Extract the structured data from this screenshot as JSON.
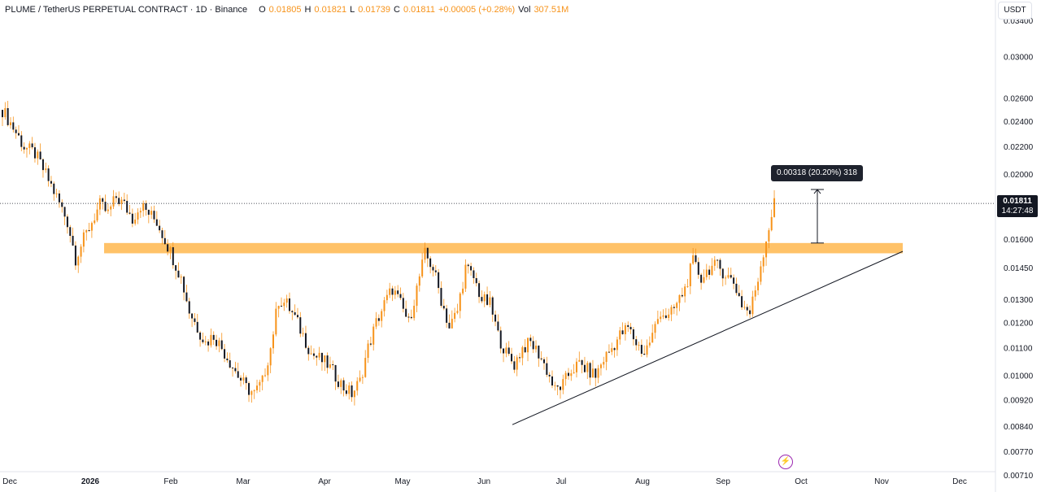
{
  "header": {
    "symbol": "PLUME / TetherUS PERPETUAL CONTRACT · 1D · Binance",
    "open_label": "O",
    "open": "0.01805",
    "high_label": "H",
    "high": "0.01821",
    "low_label": "L",
    "low": "0.01739",
    "close_label": "C",
    "close": "0.01811",
    "change": "+0.00005 (+0.28%)",
    "vol_label": "Vol",
    "vol": "307.51M"
  },
  "price_axis": {
    "unit": "USDT",
    "last_price": "0.01811",
    "countdown": "14:27:48"
  },
  "measure": {
    "label": "0.00318 (20.20%) 318"
  },
  "icons": {
    "lightning": "lightning-icon"
  },
  "colors": {
    "candle": "#f7931a",
    "zone": "#ffb74d",
    "line": "#131722"
  },
  "chart_data": {
    "type": "candlestick",
    "y_scale": "log",
    "ylim": [
      0.0067,
      0.0365
    ],
    "y_ticks": [
      "0.03400",
      "0.03000",
      "0.02600",
      "0.02400",
      "0.02200",
      "0.02000",
      "0.01600",
      "0.01450",
      "0.01300",
      "0.01200",
      "0.01100",
      "0.01000",
      "0.00920",
      "0.00840",
      "0.00770",
      "0.00710"
    ],
    "x_ticks": [
      "Dec",
      "2026",
      "Feb",
      "Mar",
      "Apr",
      "May",
      "Jun",
      "Jul",
      "Aug",
      "Sep",
      "Oct",
      "Nov",
      "Dec"
    ],
    "close_path": [
      [
        0,
        0.025
      ],
      [
        4,
        0.0235
      ],
      [
        8,
        0.022
      ],
      [
        12,
        0.0215
      ],
      [
        16,
        0.02
      ],
      [
        20,
        0.0185
      ],
      [
        24,
        0.017
      ],
      [
        27,
        0.015
      ],
      [
        30,
        0.016
      ],
      [
        33,
        0.017
      ],
      [
        36,
        0.018
      ],
      [
        39,
        0.0175
      ],
      [
        42,
        0.0185
      ],
      [
        45,
        0.018
      ],
      [
        48,
        0.0172
      ],
      [
        51,
        0.018
      ],
      [
        54,
        0.0175
      ],
      [
        57,
        0.017
      ],
      [
        60,
        0.016
      ],
      [
        63,
        0.015
      ],
      [
        66,
        0.014
      ],
      [
        69,
        0.0125
      ],
      [
        72,
        0.0118
      ],
      [
        75,
        0.0112
      ],
      [
        78,
        0.0115
      ],
      [
        81,
        0.011
      ],
      [
        84,
        0.0105
      ],
      [
        87,
        0.01
      ],
      [
        90,
        0.0096
      ],
      [
        93,
        0.0094
      ],
      [
        96,
        0.0098
      ],
      [
        99,
        0.011
      ],
      [
        102,
        0.013
      ],
      [
        105,
        0.0128
      ],
      [
        108,
        0.0122
      ],
      [
        111,
        0.0115
      ],
      [
        114,
        0.0108
      ],
      [
        117,
        0.0106
      ],
      [
        120,
        0.0104
      ],
      [
        123,
        0.01
      ],
      [
        126,
        0.0096
      ],
      [
        129,
        0.0094
      ],
      [
        132,
        0.0098
      ],
      [
        135,
        0.011
      ],
      [
        138,
        0.012
      ],
      [
        141,
        0.0128
      ],
      [
        144,
        0.0135
      ],
      [
        147,
        0.0128
      ],
      [
        150,
        0.012
      ],
      [
        153,
        0.0135
      ],
      [
        156,
        0.0152
      ],
      [
        159,
        0.0145
      ],
      [
        162,
        0.013
      ],
      [
        165,
        0.0118
      ],
      [
        168,
        0.0125
      ],
      [
        171,
        0.0145
      ],
      [
        174,
        0.014
      ],
      [
        177,
        0.013
      ],
      [
        180,
        0.0128
      ],
      [
        183,
        0.0115
      ],
      [
        186,
        0.0108
      ],
      [
        189,
        0.0104
      ],
      [
        192,
        0.011
      ],
      [
        195,
        0.0112
      ],
      [
        198,
        0.0108
      ],
      [
        201,
        0.0102
      ],
      [
        204,
        0.0095
      ],
      [
        207,
        0.0097
      ],
      [
        210,
        0.0102
      ],
      [
        213,
        0.0104
      ],
      [
        216,
        0.0102
      ],
      [
        219,
        0.01
      ],
      [
        222,
        0.0106
      ],
      [
        225,
        0.011
      ],
      [
        228,
        0.0115
      ],
      [
        231,
        0.0118
      ],
      [
        234,
        0.0112
      ],
      [
        237,
        0.0108
      ],
      [
        240,
        0.0115
      ],
      [
        243,
        0.0125
      ],
      [
        246,
        0.0122
      ],
      [
        249,
        0.0128
      ],
      [
        252,
        0.0135
      ],
      [
        255,
        0.0148
      ],
      [
        258,
        0.014
      ],
      [
        261,
        0.0145
      ],
      [
        264,
        0.0146
      ],
      [
        267,
        0.0142
      ],
      [
        270,
        0.0138
      ],
      [
        273,
        0.0128
      ],
      [
        276,
        0.0124
      ],
      [
        279,
        0.014
      ],
      [
        282,
        0.016
      ],
      [
        285,
        0.0181
      ]
    ],
    "resistance_zone": [
      0.01525,
      0.0158
    ],
    "trendline": [
      [
        215,
        0.00845
      ],
      [
        355,
        0.01535
      ]
    ],
    "measure": {
      "from": 0.0158,
      "to": 0.019
    },
    "last_price": 0.01811
  }
}
